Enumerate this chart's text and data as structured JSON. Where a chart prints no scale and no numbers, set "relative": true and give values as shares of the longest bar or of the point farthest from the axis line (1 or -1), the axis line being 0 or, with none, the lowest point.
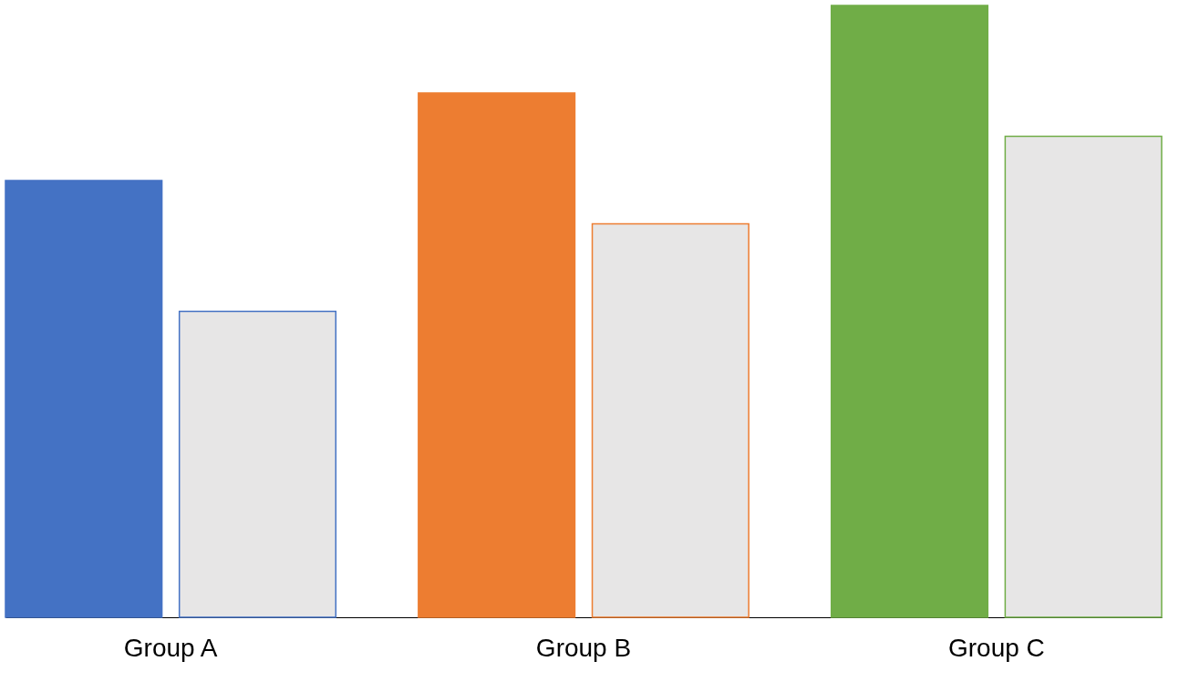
{
  "chart_data": {
    "type": "bar",
    "relative": true,
    "categories": [
      "Group A",
      "Group B",
      "Group C"
    ],
    "series": [
      {
        "colors": [
          "#4472c4",
          "#ed7d31",
          "#70ad47"
        ],
        "values": [
          0.714,
          0.857,
          1
        ]
      },
      {
        "colors": [
          "#e7e6e6",
          "#e7e6e6",
          "#e7e6e6"
        ],
        "values": [
          0.5,
          0.643,
          0.786
        ]
      }
    ],
    "grid": false
  }
}
